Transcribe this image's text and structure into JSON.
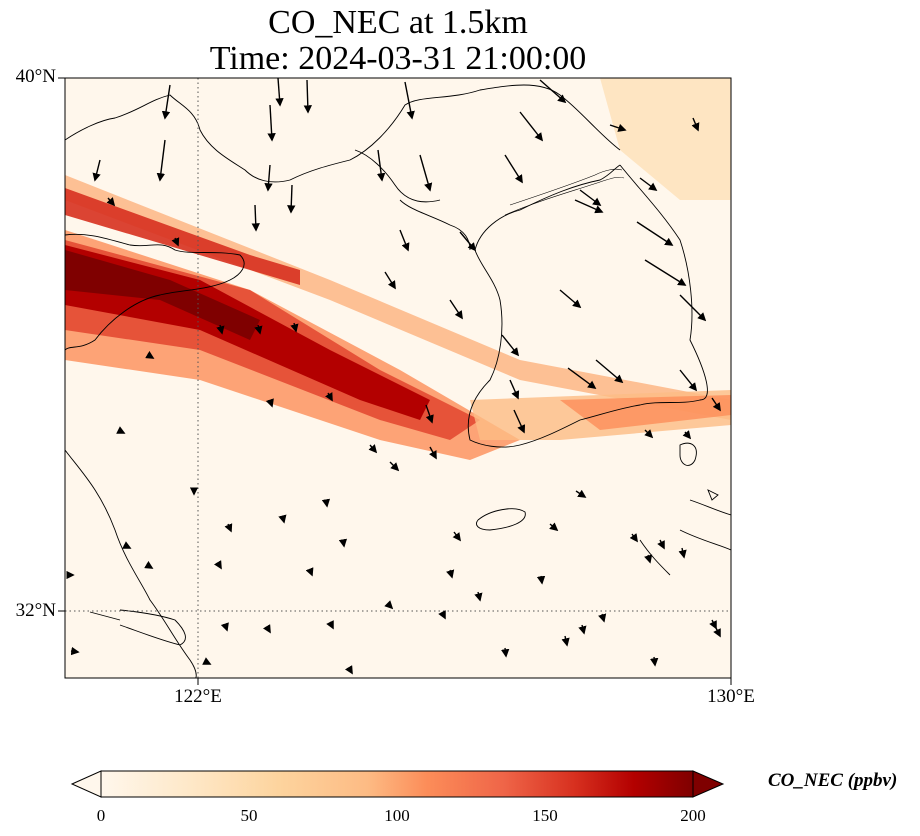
{
  "map": {
    "title_line1": "CO_NEC at 1.5km",
    "title_line2": "Time: 2024-03-31 21:00:00",
    "lat_labels": [
      "40°N",
      "32°N"
    ],
    "lon_labels": [
      "122°E",
      "130°E"
    ],
    "extent": {
      "lon_min": 120,
      "lon_max": 130,
      "lat_min": 31,
      "lat_max": 40
    },
    "gridlines": {
      "lon": [
        122
      ],
      "lat": [
        32
      ],
      "style": "dotted"
    },
    "field": "CO_NEC",
    "colormap": "OrRd",
    "colors": {
      "low": "#fff7ec",
      "mid": "#fdbb84",
      "high": "#7f0000"
    },
    "plume": {
      "description_values": "diagonal high-concentration plume from west (≈38°N,120°E) toward southeast (≈34°N,126°E), peak ~200 ppbv"
    }
  },
  "colorbar": {
    "label": "CO_NEC (ppbv)",
    "ticks": [
      "0",
      "50",
      "100",
      "150",
      "200"
    ],
    "vmin": 0,
    "vmax": 200,
    "extend": "both"
  },
  "chart_data": {
    "type": "heatmap",
    "title": "CO_NEC at 1.5km\nTime: 2024-03-31 21:00:00",
    "xlabel": "",
    "ylabel": "",
    "x_ticks": [
      "122°E",
      "130°E"
    ],
    "y_ticks": [
      "40°N",
      "32°N"
    ],
    "xlim": [
      120,
      130
    ],
    "ylim": [
      31,
      40
    ],
    "colorbar_range": [
      0,
      200
    ],
    "colorbar_label": "CO_NEC (ppbv)"
  }
}
